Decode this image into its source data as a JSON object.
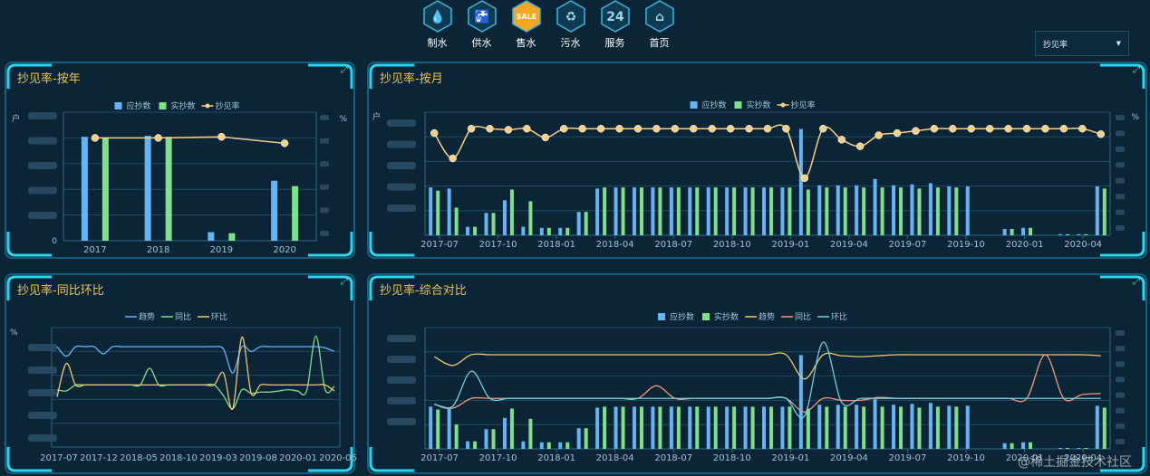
{
  "nav": [
    {
      "label": "制水",
      "icon": "water-drop-icon"
    },
    {
      "label": "供水",
      "icon": "faucet-icon"
    },
    {
      "label": "售水",
      "icon": "sale-tag-icon",
      "active": true
    },
    {
      "label": "污水",
      "icon": "recycle-icon"
    },
    {
      "label": "服务",
      "icon": "24h-service-icon"
    },
    {
      "label": "首页",
      "icon": "home-icon"
    }
  ],
  "selector": {
    "value": "抄见率",
    "icon": "caret-down-icon"
  },
  "colors": {
    "accent": "#28d7f0",
    "title": "#f0c44a",
    "bar1": "#64b5f6",
    "bar2": "#7fe08a",
    "line_rate": "#f5d08a",
    "line_trend": "#64b5f6",
    "line_yoy": "#7fe08a",
    "line_mom": "#f0c870",
    "line_trend2": "#f0c870",
    "line_yoy2": "#f29a7a",
    "line_mom2": "#6fd0e0"
  },
  "watermark": "@稀土掘金技术社区",
  "panels": {
    "year": {
      "title": "抄见率-按年",
      "chart_data": {
        "type": "bar",
        "legend": [
          "应抄数",
          "实抄数",
          "抄见率"
        ],
        "categories": [
          "2017",
          "2018",
          "2019",
          "2020"
        ],
        "series": [
          {
            "name": "应抄数",
            "values": [
              97,
              98,
              8,
              56
            ]
          },
          {
            "name": "实抄数",
            "values": [
              96,
              97,
              7,
              51
            ]
          },
          {
            "name": "抄见率",
            "values": [
              96,
              96,
              97,
              91
            ]
          }
        ],
        "y_left_ticks": [
          "0"
        ],
        "y_left_unit": "户",
        "y_right_unit": "%"
      }
    },
    "month": {
      "title": "抄见率-按月",
      "chart_data": {
        "type": "bar",
        "legend": [
          "应抄数",
          "实抄数",
          "抄见率"
        ],
        "tick_labels": [
          "2017-07",
          "2017-10",
          "2018-01",
          "2018-04",
          "2018-07",
          "2018-10",
          "2019-01",
          "2019-04",
          "2019-07",
          "2019-10",
          "2020-01",
          "2020-04"
        ],
        "categories": [
          "2017-07",
          "2017-08",
          "2017-09",
          "2017-10",
          "2017-11",
          "2017-12",
          "2018-01",
          "2018-02",
          "2018-03",
          "2018-04",
          "2018-05",
          "2018-06",
          "2018-07",
          "2018-08",
          "2018-09",
          "2018-10",
          "2018-11",
          "2018-12",
          "2019-01",
          "2019-02",
          "2019-03",
          "2019-04",
          "2019-05",
          "2019-06",
          "2019-07",
          "2019-08",
          "2019-09",
          "2019-10",
          "2019-11",
          "2019-12",
          "2020-01",
          "2020-02",
          "2020-03",
          "2020-04",
          "2020-05",
          "2020-06",
          "2020-07"
        ],
        "series": [
          {
            "name": "应抄数",
            "values": [
              45,
              44,
              8,
              21,
              33,
              8,
              7,
              7,
              22,
              44,
              45,
              45,
              45,
              45,
              45,
              45,
              45,
              45,
              45,
              45,
              100,
              47,
              47,
              47,
              53,
              47,
              48,
              49,
              46,
              46,
              0,
              6,
              7,
              0,
              1,
              1,
              46
            ]
          },
          {
            "name": "实抄数",
            "values": [
              42,
              26,
              8,
              21,
              43,
              32,
              7,
              7,
              22,
              45,
              45,
              45,
              45,
              45,
              45,
              45,
              45,
              45,
              45,
              45,
              43,
              45,
              45,
              45,
              45,
              45,
              44,
              45,
              45,
              0,
              0,
              6,
              7,
              0,
              1,
              1,
              44
            ]
          },
          {
            "name": "抄见率",
            "values": [
              93,
              70,
              97,
              97,
              96,
              97,
              89,
              97,
              97,
              97,
              97,
              97,
              97,
              97,
              97,
              97,
              97,
              97,
              97,
              97,
              52,
              97,
              87,
              81,
              91,
              93,
              95,
              97,
              97,
              97,
              97,
              97,
              97,
              97,
              97,
              97,
              92
            ]
          }
        ],
        "y_left_unit": "户",
        "y_right_unit": "%"
      }
    },
    "yoy": {
      "title": "抄见率-同比环比",
      "chart_data": {
        "type": "line",
        "legend": [
          "趋势",
          "同比",
          "环比"
        ],
        "tick_labels": [
          "2017-07",
          "2017-12",
          "2018-05",
          "2018-10",
          "2019-03",
          "2019-08",
          "2020-01",
          "2020-06"
        ],
        "series": [
          {
            "name": "趋势",
            "values": [
              84,
              76,
              84,
              84,
              84,
              78,
              84,
              84,
              84,
              84,
              84,
              84,
              84,
              84,
              84,
              84,
              84,
              84,
              82,
              62,
              84,
              80,
              84,
              84,
              84,
              84,
              84,
              84,
              84,
              83,
              80
            ]
          },
          {
            "name": "同比",
            "values": [
              48,
              47,
              52,
              52,
              52,
              52,
              52,
              52,
              52,
              52,
              66,
              52,
              52,
              52,
              52,
              52,
              52,
              52,
              43,
              32,
              48,
              45,
              46,
              46,
              47,
              48,
              47,
              47,
              93,
              48,
              51
            ]
          },
          {
            "name": "环比",
            "values": [
              42,
              70,
              52,
              52,
              52,
              52,
              52,
              52,
              52,
              52,
              52,
              52,
              52,
              52,
              52,
              52,
              52,
              52,
              62,
              32,
              92,
              45,
              52,
              52,
              52,
              52,
              52,
              52,
              52,
              52,
              47
            ]
          }
        ],
        "y_unit": "%"
      }
    },
    "combined": {
      "title": "抄见率-综合对比",
      "chart_data": {
        "type": "bar",
        "legend": [
          "应抄数",
          "实抄数",
          "趋势",
          "同比",
          "环比"
        ],
        "tick_labels": [
          "2017-07",
          "2017-10",
          "2018-01",
          "2018-04",
          "2018-07",
          "2018-10",
          "2019-01",
          "2019-04",
          "2019-07",
          "2019-10",
          "2020-01",
          "2020-04"
        ],
        "series": [
          {
            "name": "应抄数",
            "values": [
              45,
              44,
              8,
              21,
              33,
              8,
              7,
              7,
              22,
              44,
              45,
              45,
              45,
              45,
              45,
              45,
              45,
              45,
              45,
              45,
              100,
              47,
              47,
              47,
              53,
              47,
              48,
              49,
              46,
              46,
              0,
              6,
              7,
              0,
              1,
              1,
              46
            ]
          },
          {
            "name": "实抄数",
            "values": [
              42,
              26,
              8,
              21,
              43,
              32,
              7,
              7,
              22,
              45,
              45,
              45,
              45,
              45,
              45,
              45,
              45,
              45,
              45,
              45,
              43,
              45,
              45,
              45,
              45,
              45,
              44,
              45,
              45,
              0,
              0,
              6,
              7,
              0,
              1,
              1,
              44
            ]
          },
          {
            "name": "趋势",
            "values": [
              95,
              86,
              97,
              97,
              97,
              97,
              97,
              97,
              97,
              97,
              97,
              97,
              97,
              97,
              97,
              97,
              97,
              97,
              97,
              97,
              72,
              97,
              96,
              95,
              96,
              97,
              97,
              97,
              97,
              97,
              97,
              97,
              97,
              97,
              97,
              97,
              96
            ]
          },
          {
            "name": "同比",
            "values": [
              46,
              42,
              52,
              52,
              52,
              52,
              52,
              52,
              52,
              52,
              52,
              52,
              65,
              52,
              52,
              52,
              52,
              52,
              52,
              52,
              38,
              52,
              50,
              50,
              53,
              52,
              52,
              52,
              52,
              52,
              52,
              52,
              52,
              97,
              52,
              56,
              57
            ]
          },
          {
            "name": "环比",
            "values": [
              46,
              44,
              80,
              52,
              52,
              52,
              52,
              52,
              52,
              52,
              52,
              52,
              52,
              52,
              52,
              52,
              52,
              52,
              52,
              52,
              34,
              110,
              48,
              52,
              52,
              52,
              52,
              52,
              52,
              52,
              52,
              52,
              52,
              52,
              52,
              52,
              52
            ]
          }
        ],
        "y_left_unit": "",
        "y_right_unit": ""
      }
    }
  }
}
